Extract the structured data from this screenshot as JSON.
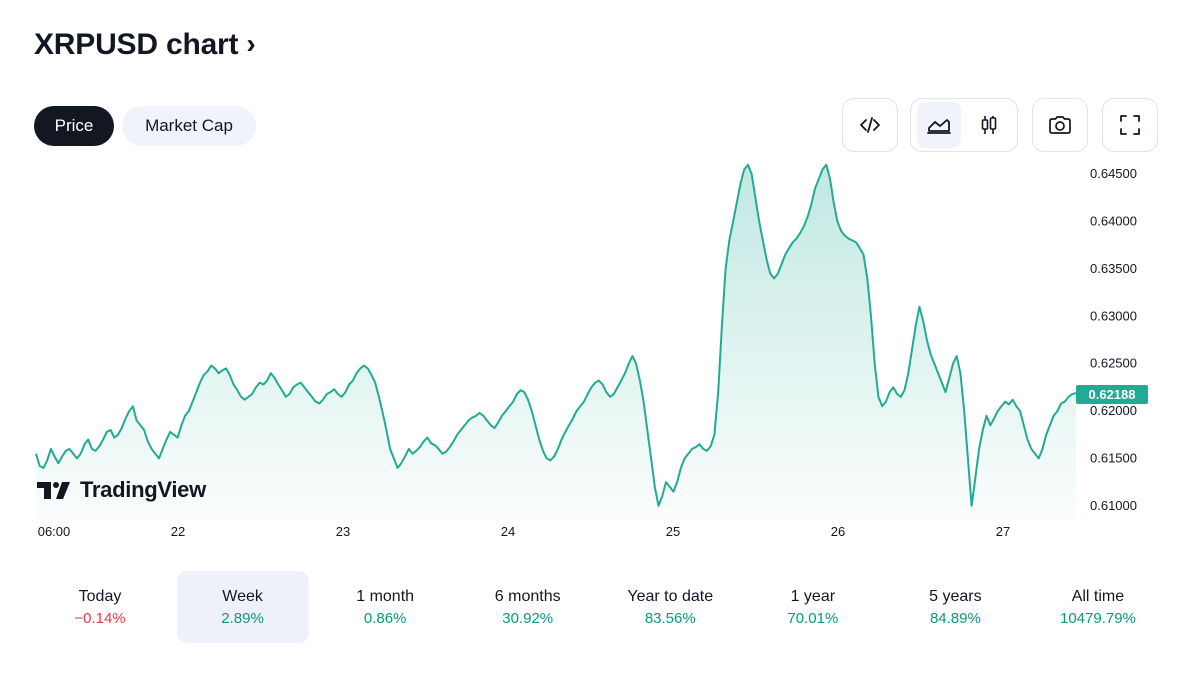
{
  "header": {
    "title": "XRPUSD chart",
    "chevron": "›"
  },
  "tabs": [
    {
      "label": "Price",
      "active": true
    },
    {
      "label": "Market Cap",
      "active": false
    }
  ],
  "toolbar": {
    "icons": [
      "embed-code-icon",
      "area-chart-icon",
      "candlestick-chart-icon",
      "camera-icon",
      "fullscreen-icon"
    ],
    "selected": "area-chart-icon"
  },
  "brand": {
    "name": "TradingView"
  },
  "colors": {
    "line": "#22ab94",
    "positive": "#089981",
    "negative": "#f23645",
    "badge": "#22ab94"
  },
  "chart_data": {
    "type": "area",
    "symbol": "XRPUSD",
    "x_ticks": [
      "06:00",
      "22",
      "23",
      "24",
      "25",
      "26",
      "27"
    ],
    "y_ticks": [
      "0.64500",
      "0.64000",
      "0.63500",
      "0.63000",
      "0.62500",
      "0.62000",
      "0.61500",
      "0.61000"
    ],
    "ylim": [
      0.6085,
      0.6465
    ],
    "last_price": "0.62188",
    "grid": false,
    "series": [
      {
        "values": [
          0.6155,
          0.6142,
          0.614,
          0.6148,
          0.616,
          0.6152,
          0.6145,
          0.6152,
          0.6158,
          0.616,
          0.6155,
          0.615,
          0.6155,
          0.6165,
          0.617,
          0.616,
          0.6158,
          0.6163,
          0.617,
          0.6178,
          0.618,
          0.6172,
          0.6175,
          0.6182,
          0.6192,
          0.62,
          0.6205,
          0.619,
          0.6185,
          0.618,
          0.6168,
          0.616,
          0.6155,
          0.615,
          0.616,
          0.617,
          0.6178,
          0.6175,
          0.6172,
          0.6185,
          0.6195,
          0.62,
          0.621,
          0.622,
          0.623,
          0.6238,
          0.6242,
          0.6248,
          0.6245,
          0.624,
          0.6243,
          0.6245,
          0.6238,
          0.6228,
          0.6222,
          0.6215,
          0.6212,
          0.6215,
          0.6218,
          0.6225,
          0.623,
          0.6228,
          0.6232,
          0.624,
          0.6235,
          0.6228,
          0.6222,
          0.6215,
          0.6218,
          0.6225,
          0.6228,
          0.623,
          0.6225,
          0.622,
          0.6215,
          0.621,
          0.6208,
          0.6212,
          0.6218,
          0.622,
          0.6223,
          0.6218,
          0.6215,
          0.622,
          0.6228,
          0.6232,
          0.624,
          0.6245,
          0.6248,
          0.6245,
          0.6238,
          0.623,
          0.6215,
          0.6198,
          0.618,
          0.616,
          0.615,
          0.614,
          0.6145,
          0.6152,
          0.616,
          0.6155,
          0.6158,
          0.6162,
          0.6168,
          0.6172,
          0.6166,
          0.6164,
          0.616,
          0.6155,
          0.6157,
          0.6162,
          0.6168,
          0.6175,
          0.618,
          0.6185,
          0.619,
          0.6193,
          0.6195,
          0.6198,
          0.6195,
          0.619,
          0.6185,
          0.6182,
          0.6188,
          0.6195,
          0.62,
          0.6205,
          0.621,
          0.6218,
          0.6222,
          0.622,
          0.6212,
          0.62,
          0.6185,
          0.617,
          0.6158,
          0.615,
          0.6148,
          0.6152,
          0.616,
          0.617,
          0.6178,
          0.6185,
          0.6192,
          0.62,
          0.6205,
          0.621,
          0.6218,
          0.6225,
          0.623,
          0.6232,
          0.6228,
          0.622,
          0.6215,
          0.6218,
          0.6225,
          0.6232,
          0.624,
          0.625,
          0.6258,
          0.625,
          0.6232,
          0.621,
          0.618,
          0.615,
          0.612,
          0.61,
          0.611,
          0.6125,
          0.612,
          0.6115,
          0.6125,
          0.614,
          0.615,
          0.6155,
          0.616,
          0.6162,
          0.6165,
          0.616,
          0.6158,
          0.6163,
          0.6175,
          0.622,
          0.629,
          0.635,
          0.638,
          0.64,
          0.642,
          0.644,
          0.6455,
          0.646,
          0.645,
          0.6425,
          0.64,
          0.638,
          0.636,
          0.6345,
          0.634,
          0.6345,
          0.6355,
          0.6365,
          0.6372,
          0.6378,
          0.6382,
          0.6388,
          0.6395,
          0.6405,
          0.6418,
          0.6435,
          0.6445,
          0.6455,
          0.646,
          0.6445,
          0.642,
          0.64,
          0.639,
          0.6385,
          0.6382,
          0.638,
          0.6378,
          0.6372,
          0.6365,
          0.634,
          0.63,
          0.625,
          0.6215,
          0.6205,
          0.621,
          0.622,
          0.6225,
          0.6218,
          0.6215,
          0.6222,
          0.624,
          0.6265,
          0.629,
          0.631,
          0.6295,
          0.6275,
          0.626,
          0.625,
          0.624,
          0.623,
          0.622,
          0.6235,
          0.625,
          0.6258,
          0.624,
          0.62,
          0.615,
          0.61,
          0.613,
          0.616,
          0.618,
          0.6195,
          0.6185,
          0.6192,
          0.62,
          0.6205,
          0.621,
          0.6207,
          0.6212,
          0.6205,
          0.62,
          0.6185,
          0.617,
          0.616,
          0.6155,
          0.615,
          0.616,
          0.6175,
          0.6185,
          0.6195,
          0.62,
          0.6208,
          0.621,
          0.6215,
          0.6218,
          0.6219
        ]
      }
    ]
  },
  "periods": [
    {
      "label": "Today",
      "value": "−0.14%",
      "trend": "neg",
      "selected": false
    },
    {
      "label": "Week",
      "value": "2.89%",
      "trend": "pos",
      "selected": true
    },
    {
      "label": "1 month",
      "value": "0.86%",
      "trend": "pos",
      "selected": false
    },
    {
      "label": "6 months",
      "value": "30.92%",
      "trend": "pos",
      "selected": false
    },
    {
      "label": "Year to date",
      "value": "83.56%",
      "trend": "pos",
      "selected": false
    },
    {
      "label": "1 year",
      "value": "70.01%",
      "trend": "pos",
      "selected": false
    },
    {
      "label": "5 years",
      "value": "84.89%",
      "trend": "pos",
      "selected": false
    },
    {
      "label": "All time",
      "value": "10479.79%",
      "trend": "pos",
      "selected": false
    }
  ]
}
